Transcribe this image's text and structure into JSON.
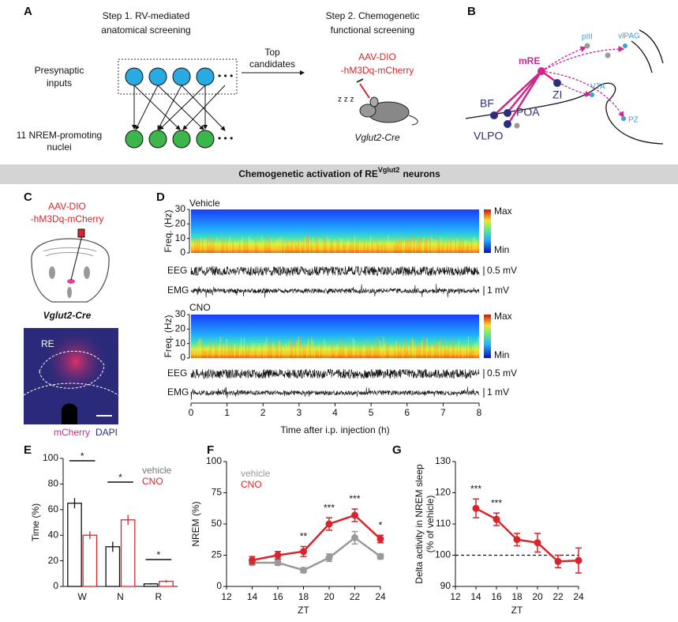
{
  "panel_labels": [
    "A",
    "B",
    "C",
    "D",
    "E",
    "F",
    "G"
  ],
  "panel_a": {
    "step1": [
      "Step 1. RV-mediated",
      "anatomical screening"
    ],
    "step2": [
      "Step 2. Chemogenetic",
      "functional screening"
    ],
    "presynaptic": [
      "Presynaptic",
      "inputs"
    ],
    "nuclei": [
      "11 NREM-promoting",
      "nuclei"
    ],
    "top": [
      "Top",
      "candidates"
    ],
    "virus": [
      "AAV-DIO",
      "-hM3Dq-mCherry"
    ],
    "zzz": "z z z",
    "genotype": "Vglut2-Cre"
  },
  "panel_b": {
    "mre": "mRE",
    "bf": "BF",
    "poa": "POA",
    "zi": "ZI",
    "vlpo": "VLPO",
    "piii": "pIII",
    "vlpag": "vlPAG",
    "vta": "VTA",
    "pz": "PZ"
  },
  "banner": {
    "main": "Chemogenetic activation of RE",
    "superscript": "Vglut2",
    "end": "neurons"
  },
  "panel_c": {
    "virus": [
      "AAV-DIO",
      "-hM3Dq-mCherry"
    ],
    "genotype": "Vglut2-Cre",
    "re": "RE",
    "stain1": "mCherry",
    "stain2": "DAPI"
  },
  "panel_d": {
    "conditions": [
      "Vehicle",
      "CNO"
    ],
    "freq_label": "Freq. (Hz)",
    "freq_ticks": [
      0,
      10,
      20,
      30
    ],
    "max": "Max",
    "min": "Min",
    "eeg": "EEG",
    "emg": "EMG",
    "eeg_scale": "0.5 mV",
    "emg_scale": "1 mV",
    "time_ticks": [
      0,
      1,
      2,
      3,
      4,
      5,
      6,
      7,
      8
    ],
    "xlabel": "Time after i.p. injection (h)"
  },
  "chart_data": [
    {
      "type": "bar",
      "categories": [
        "W",
        "N",
        "R"
      ],
      "ylabel": "Time (%)",
      "ylim": [
        0,
        100
      ],
      "yticks": [
        0,
        20,
        40,
        60,
        80,
        100
      ],
      "series": [
        {
          "name": "vehicle",
          "color": "#111111",
          "label_color": "#777777",
          "values": [
            65,
            31,
            2
          ],
          "errors": [
            4,
            4,
            0.5
          ]
        },
        {
          "name": "CNO",
          "color": "#d7262b",
          "label_color": "#d7262b",
          "values": [
            40,
            52,
            4
          ],
          "errors": [
            3,
            4,
            1
          ]
        }
      ],
      "significance": [
        "*",
        "*",
        "*"
      ]
    },
    {
      "type": "line",
      "x": [
        14,
        16,
        18,
        20,
        22,
        24
      ],
      "xlabel": "ZT",
      "ylabel": "NREM (%)",
      "xlim": [
        12,
        24
      ],
      "xticks": [
        12,
        14,
        16,
        18,
        20,
        22,
        24
      ],
      "ylim": [
        0,
        100
      ],
      "yticks": [
        0,
        25,
        50,
        75,
        100
      ],
      "series": [
        {
          "name": "vehicle",
          "color": "#999999",
          "values": [
            19,
            19,
            13,
            23,
            39,
            24
          ],
          "errors": [
            2,
            2,
            2,
            3,
            5,
            2
          ]
        },
        {
          "name": "CNO",
          "color": "#d7262b",
          "values": [
            21,
            25,
            28,
            50,
            57,
            38
          ],
          "errors": [
            3,
            3,
            4,
            5,
            5,
            3
          ]
        }
      ],
      "annotations": [
        {
          "x": 18,
          "label": "**"
        },
        {
          "x": 20,
          "label": "***"
        },
        {
          "x": 22,
          "label": "***"
        },
        {
          "x": 24,
          "label": "*"
        }
      ]
    },
    {
      "type": "line",
      "x": [
        14,
        16,
        18,
        20,
        22,
        24
      ],
      "xlabel": "ZT",
      "ylabel": [
        "Delta activity in NREM sleep",
        "(% of vehicle)"
      ],
      "xlim": [
        12,
        24
      ],
      "xticks": [
        12,
        14,
        16,
        18,
        20,
        22,
        24
      ],
      "ylim": [
        90,
        130
      ],
      "yticks": [
        90,
        100,
        110,
        120,
        130
      ],
      "reference_line": 100,
      "series": [
        {
          "color": "#d7262b",
          "values": [
            115,
            111.5,
            105,
            104,
            98,
            98.3
          ],
          "errors": [
            3,
            2,
            2,
            3,
            2,
            4
          ]
        }
      ],
      "annotations": [
        {
          "x": 14,
          "label": "***"
        },
        {
          "x": 16,
          "label": "***"
        }
      ]
    }
  ]
}
